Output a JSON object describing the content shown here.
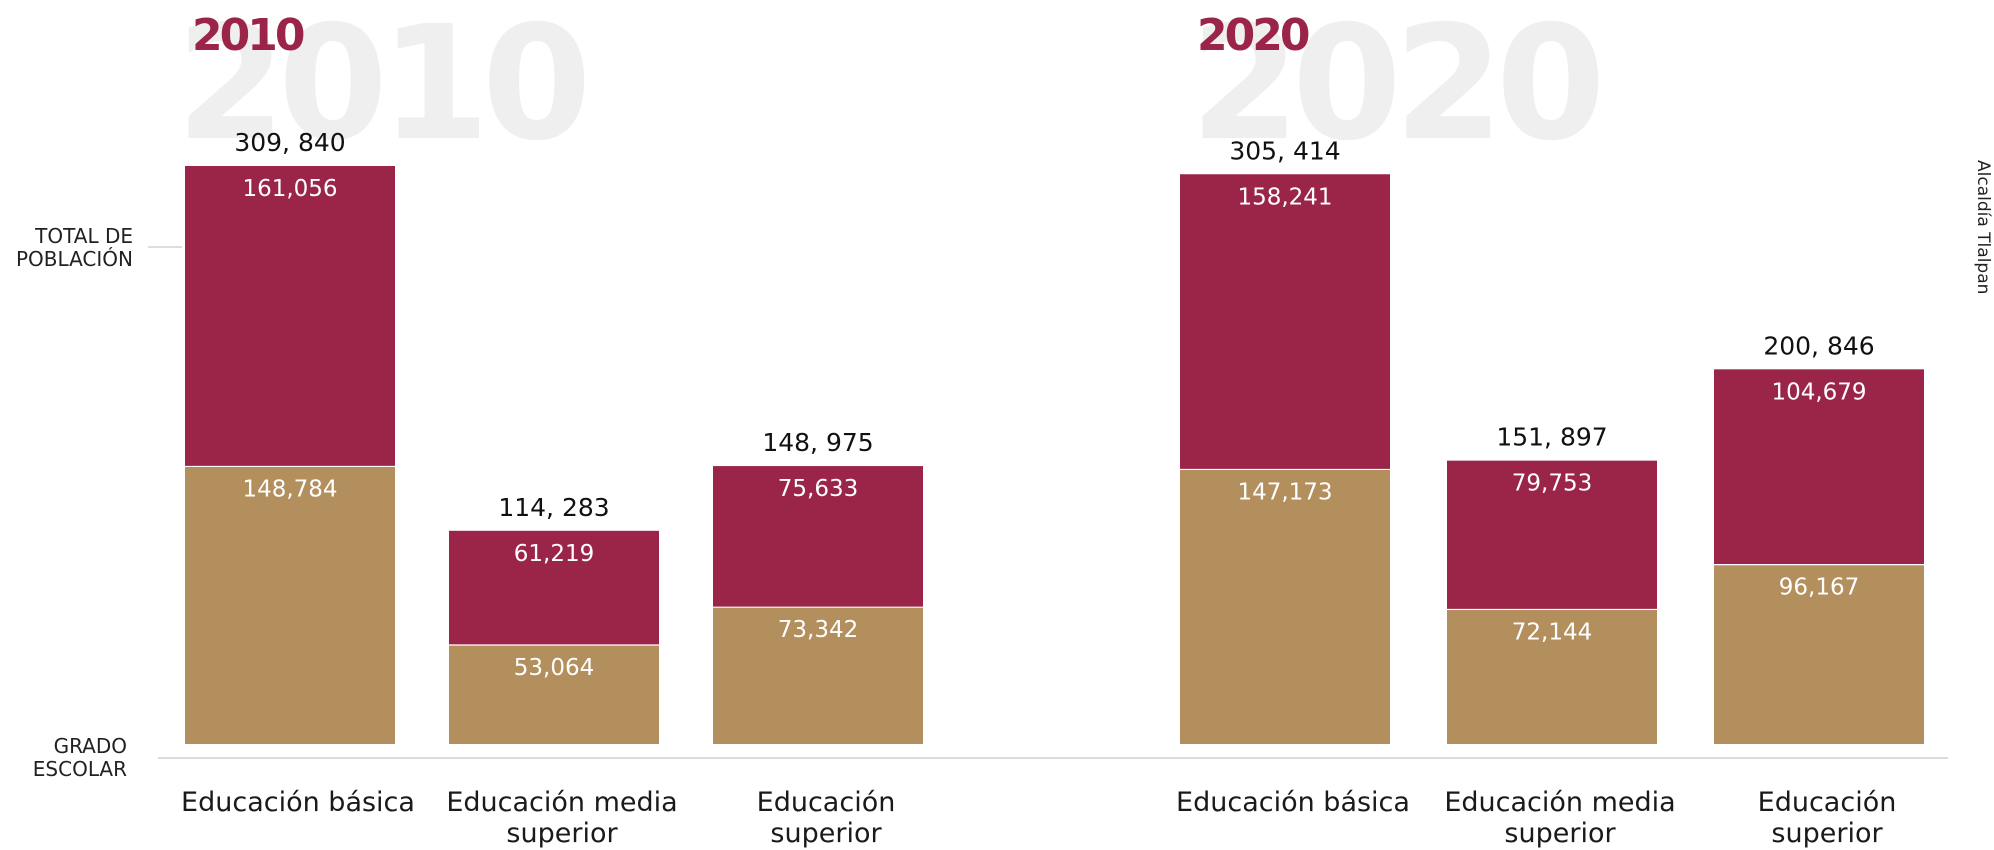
{
  "side_note": "Alcaldía Tlalpan",
  "y_labels": {
    "total": [
      "TOTAL DE",
      "POBLACIÓN"
    ],
    "grado": [
      "GRADO",
      "ESCOLAR"
    ]
  },
  "colors": {
    "top": "#9b2449",
    "bottom": "#b38f5e",
    "watermark": "#efefef",
    "year": "#9b2449"
  },
  "chart_data": [
    {
      "type": "bar",
      "title": "2010",
      "watermark": "2010",
      "categories": [
        "Educación básica",
        "Educación media superior",
        "Educación superior"
      ],
      "category_lines": [
        [
          "Educación básica"
        ],
        [
          "Educación media",
          "superior"
        ],
        [
          "Educación",
          "superior"
        ]
      ],
      "series": [
        {
          "values": [
            148784,
            53064,
            73342
          ],
          "labels": [
            "148,784",
            "53,064",
            "73,342"
          ]
        },
        {
          "values": [
            161056,
            61219,
            75633
          ],
          "labels": [
            "161,056",
            "61,219",
            "75,633"
          ]
        }
      ],
      "totals": [
        309840,
        114283,
        148975
      ],
      "total_labels": [
        "309, 840",
        "114, 283",
        "148, 975"
      ]
    },
    {
      "type": "bar",
      "title": "2020",
      "watermark": "2020",
      "categories": [
        "Educación básica",
        "Educación media superior",
        "Educación superior"
      ],
      "category_lines": [
        [
          "Educación básica"
        ],
        [
          "Educación media",
          "superior"
        ],
        [
          "Educación",
          "superior"
        ]
      ],
      "series": [
        {
          "values": [
            147173,
            72144,
            96167
          ],
          "labels": [
            "147,173",
            "72,144",
            "96,167"
          ]
        },
        {
          "values": [
            158241,
            79753,
            104679
          ],
          "labels": [
            "158,241",
            "79,753",
            "104,679"
          ]
        }
      ],
      "totals": [
        305414,
        151897,
        200846
      ],
      "total_labels": [
        "305, 414",
        "151, 897",
        "200, 846"
      ]
    }
  ]
}
